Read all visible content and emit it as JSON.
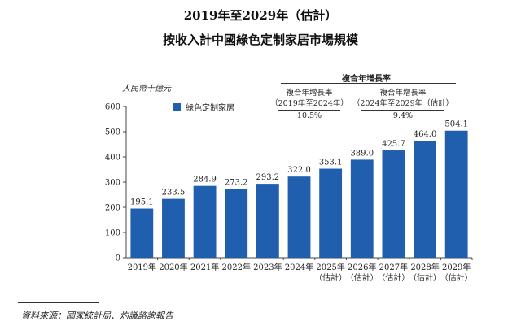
{
  "title_line1": "2019年至2029年（估計）",
  "title_line2": "按收入計中國綠色定制家居市場規模",
  "unit": "人民幣十億元",
  "cagr": {
    "header": "複合年增長率",
    "periods": [
      {
        "label": "複合年增長率",
        "range": "（2019年至2024年）",
        "value": "10.5%"
      },
      {
        "label": "複合年增長率",
        "range": "（2024年至2029年（估計）",
        "value": "9.4%"
      }
    ]
  },
  "source": "資料來源：國家統計局、灼識諮詢報告",
  "chart_data": {
    "type": "bar",
    "categories": [
      "2019年",
      "2020年",
      "2021年",
      "2022年",
      "2023年",
      "2024年",
      "2025年\n（估計）",
      "2026年\n（估計）",
      "2027年\n（估計）",
      "2028年\n（估計）",
      "2029年\n（估計）"
    ],
    "series": [
      {
        "name": "綠色定制家居",
        "values": [
          195.1,
          233.5,
          284.9,
          273.2,
          293.2,
          322.0,
          353.1,
          389.0,
          425.7,
          464.0,
          504.1
        ],
        "labels": [
          "195.1",
          "233.5",
          "284.9",
          "273.2",
          "293.2",
          "322.0",
          "353.1",
          "389.0",
          "425.7",
          "464.0",
          "504.1"
        ]
      }
    ],
    "yticks": [
      0,
      100,
      200,
      300,
      400,
      500,
      600
    ],
    "ylim": [
      0,
      600
    ],
    "ylabel": "人民幣十億元",
    "color": "#1f5fae",
    "legend": "top-left",
    "grid": false
  }
}
